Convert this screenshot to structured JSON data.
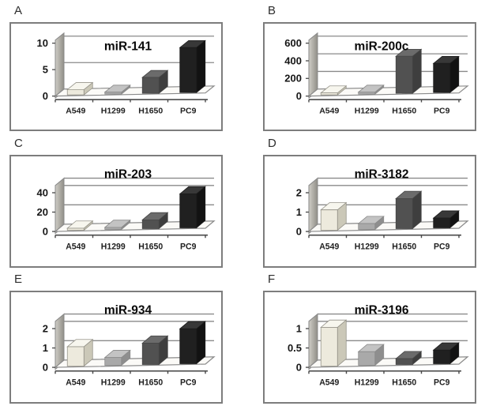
{
  "figure": {
    "description_visible_text_only": "Six panel bar chart figure",
    "categories": [
      "A549",
      "H1299",
      "H1650",
      "PC9"
    ]
  },
  "chart_data": [
    {
      "type": "bar",
      "panel_label": "A",
      "title": "miR-141",
      "categories": [
        "A549",
        "H1299",
        "H1650",
        "PC9"
      ],
      "values": [
        1.0,
        0.3,
        3.0,
        8.5
      ],
      "yticks": [
        0,
        5,
        10
      ],
      "ylim": [
        0,
        10
      ],
      "xlabel": "",
      "ylabel": "",
      "grid": true,
      "legend": false,
      "bar_style": "3d"
    },
    {
      "type": "bar",
      "panel_label": "B",
      "title": "miR-200c",
      "categories": [
        "A549",
        "H1299",
        "H1650",
        "PC9"
      ],
      "values": [
        8,
        8,
        420,
        330
      ],
      "yticks": [
        0,
        200,
        400,
        600
      ],
      "ylim": [
        0,
        600
      ],
      "xlabel": "",
      "ylabel": "",
      "grid": true,
      "legend": false,
      "bar_style": "3d"
    },
    {
      "type": "bar",
      "panel_label": "C",
      "title": "miR-203",
      "categories": [
        "A549",
        "H1299",
        "H1650",
        "PC9"
      ],
      "values": [
        1,
        1,
        9,
        35
      ],
      "yticks": [
        0,
        20,
        40
      ],
      "ylim": [
        0,
        40
      ],
      "xlabel": "",
      "ylabel": "",
      "grid": true,
      "legend": false,
      "bar_style": "3d"
    },
    {
      "type": "bar",
      "panel_label": "D",
      "title": "miR-3182",
      "categories": [
        "A549",
        "H1299",
        "H1650",
        "PC9"
      ],
      "values": [
        1.05,
        0.3,
        1.55,
        0.5
      ],
      "yticks": [
        0,
        1,
        2
      ],
      "ylim": [
        0,
        2
      ],
      "xlabel": "",
      "ylabel": "",
      "grid": true,
      "legend": false,
      "bar_style": "3d"
    },
    {
      "type": "bar",
      "panel_label": "E",
      "title": "miR-934",
      "categories": [
        "A549",
        "H1299",
        "H1650",
        "PC9"
      ],
      "values": [
        1.0,
        0.4,
        1.1,
        1.8
      ],
      "yticks": [
        0,
        1,
        2
      ],
      "ylim": [
        0,
        2
      ],
      "xlabel": "",
      "ylabel": "",
      "grid": true,
      "legend": false,
      "bar_style": "3d"
    },
    {
      "type": "bar",
      "panel_label": "F",
      "title": "miR-3196",
      "categories": [
        "A549",
        "H1299",
        "H1650",
        "PC9"
      ],
      "values": [
        1.0,
        0.35,
        0.15,
        0.35
      ],
      "yticks": [
        0,
        0.5,
        1
      ],
      "ylim": [
        0,
        1
      ],
      "xlabel": "",
      "ylabel": "",
      "grid": true,
      "legend": false,
      "bar_style": "3d"
    }
  ],
  "bar_colors": {
    "A549": {
      "front": "#edeadd",
      "top": "#f7f6ee",
      "side": "#cbc8b8",
      "outline": "#96948a"
    },
    "H1299": {
      "front": "#a9a9a9",
      "top": "#c3c3c3",
      "side": "#8e8e8e",
      "outline": "#8a8a8a"
    },
    "H1650": {
      "front": "#515151",
      "top": "#6b6b6b",
      "side": "#3e3e3e",
      "outline": "#464646"
    },
    "PC9": {
      "front": "#202020",
      "top": "#383838",
      "side": "#121212",
      "outline": "#1b1b1b"
    }
  },
  "theme": {
    "panel_border": "#7d7d7d",
    "panel_background": "#ffffff",
    "gridline": "#8a8a8a",
    "axis": "#4a4a4a",
    "wall_light": "#cfcdc6",
    "wall_dark": "#908e87",
    "floor_fill": "#fbfaf7",
    "title_color": "#0a0a0a",
    "tick_label_color": "#161616",
    "category_label_color": "#202020",
    "letter_color": "#2d2d2d"
  }
}
